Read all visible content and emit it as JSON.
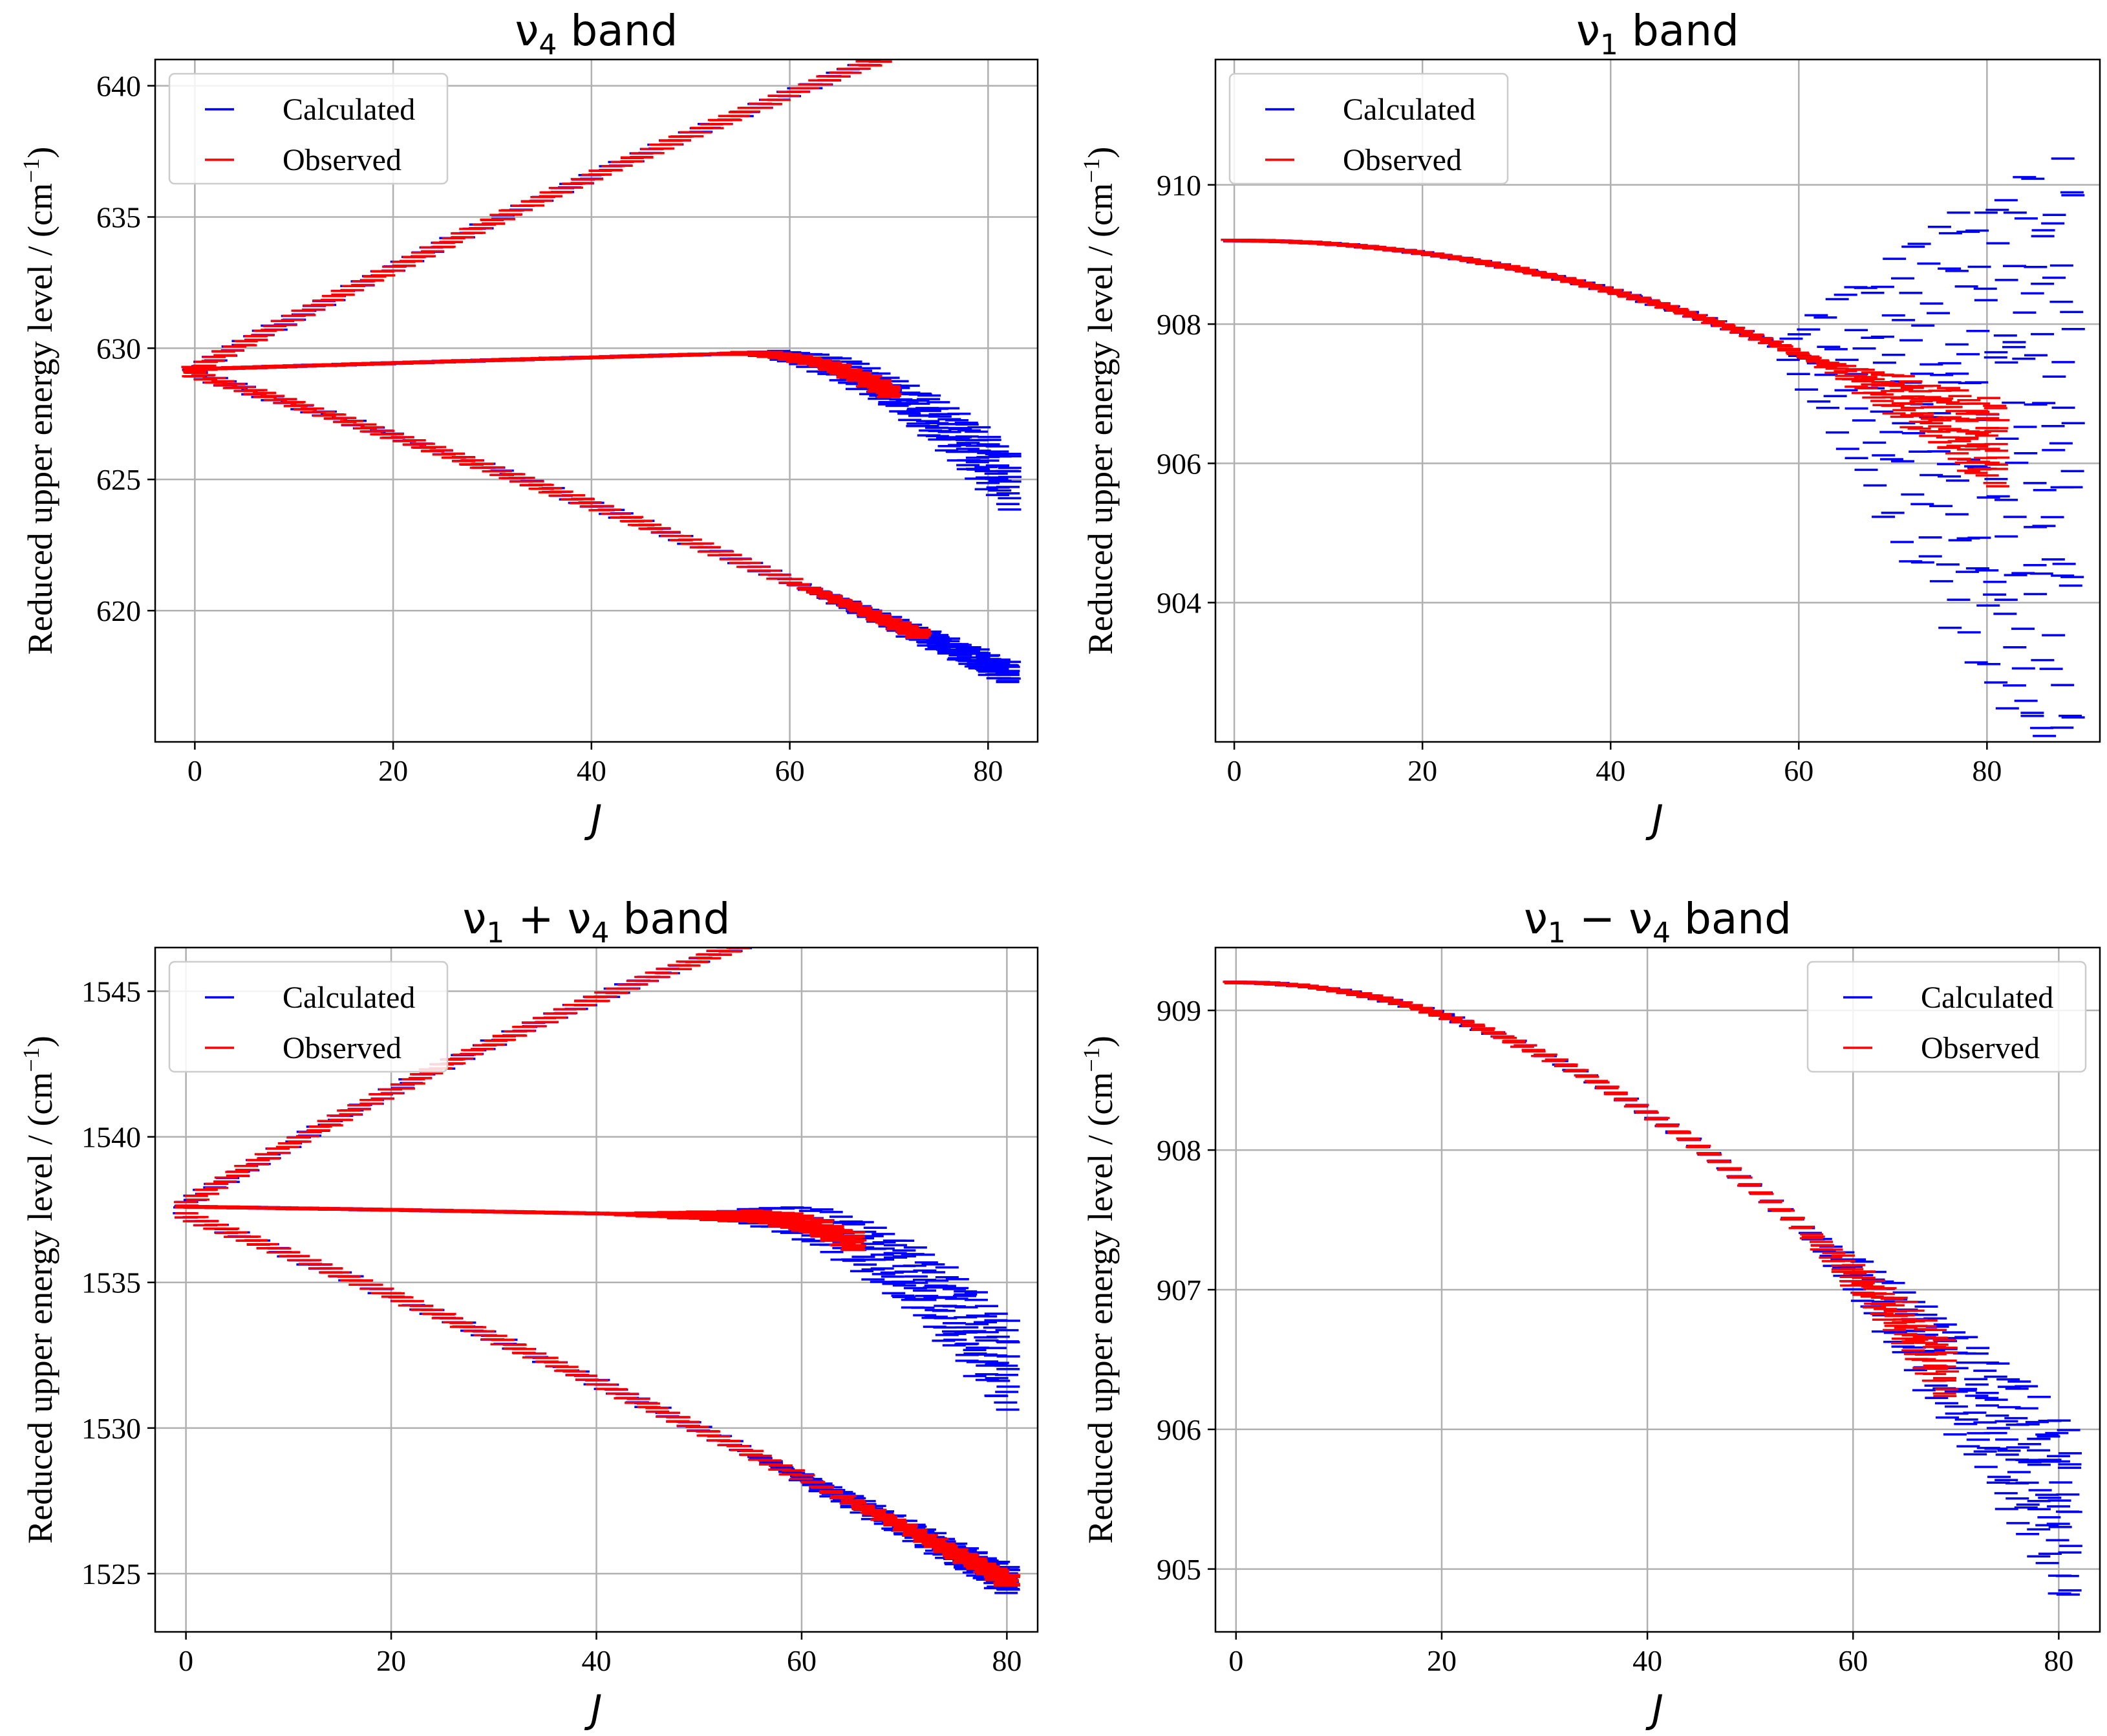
{
  "chart_data": [
    {
      "type": "scatter",
      "title": "ν",
      "title_sub": "4",
      "title_rest": " band",
      "xlabel": "J",
      "ylabel": "Reduced upper energy level / (cm",
      "ylabel_sup": "−1",
      "ylabel_end": ")",
      "xlim": [
        -4,
        85
      ],
      "ylim": [
        615,
        641
      ],
      "xticks": [
        0,
        20,
        40,
        60,
        80
      ],
      "yticks": [
        620,
        625,
        630,
        635,
        640
      ],
      "legend": [
        "Calculated",
        "Observed"
      ],
      "legend_position": "upper-left",
      "series": [
        {
          "name": "Calculated upper branch",
          "color": "#0000ff",
          "j_max": 82,
          "y0": 629.2,
          "slope": 0.2,
          "curv": -0.00042,
          "spread_start": 72,
          "spread": 0.6
        },
        {
          "name": "Calculated middle branch",
          "color": "#0000ff",
          "j_max": 82,
          "y0": 629.2,
          "slope": 0.012,
          "curv": -2e-05,
          "drop_start": 55,
          "drop": -0.014,
          "spread_start": 55,
          "spread": 2.0
        },
        {
          "name": "Calculated lower branch",
          "color": "#0000ff",
          "j_max": 82,
          "y0": 629.0,
          "slope": -0.11,
          "curv": -0.00035,
          "spread_start": 60,
          "spread": 0.8
        },
        {
          "name": "Observed upper branch",
          "color": "#ff0000",
          "j_max": 79,
          "y0": 629.2,
          "slope": 0.2,
          "curv": -0.00042,
          "spread_start": 70,
          "spread": 0.3
        },
        {
          "name": "Observed middle branch",
          "color": "#ff0000",
          "j_max": 70,
          "y0": 629.2,
          "slope": 0.012,
          "curv": -2e-05,
          "drop_start": 55,
          "drop": -0.014,
          "spread_start": 50,
          "spread": 0.4
        },
        {
          "name": "Observed lower branch",
          "color": "#ff0000",
          "j_max": 73,
          "y0": 629.0,
          "slope": -0.11,
          "curv": -0.00035,
          "spread_start": 60,
          "spread": 0.3
        }
      ]
    },
    {
      "type": "scatter",
      "title": "ν",
      "title_sub": "1",
      "title_rest": " band",
      "xlabel": "J",
      "ylabel": "Reduced upper energy level / (cm",
      "ylabel_sup": "−1",
      "ylabel_end": ")",
      "xlim": [
        -2,
        92
      ],
      "ylim": [
        902,
        911.8
      ],
      "xticks": [
        0,
        20,
        40,
        60,
        80
      ],
      "yticks": [
        904,
        906,
        908,
        910
      ],
      "legend": [
        "Calculated",
        "Observed"
      ],
      "legend_position": "upper-left",
      "series": [
        {
          "name": "Calculated",
          "color": "#0000ff",
          "j_max": 89,
          "y0": 909.2,
          "slope": 0,
          "curv": -0.00045,
          "spread_start": 58,
          "spread": 9.0
        },
        {
          "name": "Observed",
          "color": "#ff0000",
          "j_max": 81,
          "y0": 909.2,
          "slope": 0,
          "curv": -0.00045,
          "spread_start": 62,
          "spread": 1.2
        }
      ]
    },
    {
      "type": "scatter",
      "title": "ν",
      "title_sub": "1",
      "title_rest": " + ν",
      "title_sub2": "4",
      "title_end": " band",
      "xlabel": "J",
      "ylabel": "Reduced upper energy level / (cm",
      "ylabel_sup": "−1",
      "ylabel_end": ")",
      "xlim": [
        -3,
        83
      ],
      "ylim": [
        1523,
        1546.5
      ],
      "xticks": [
        0,
        20,
        40,
        60,
        80
      ],
      "yticks": [
        1525,
        1530,
        1535,
        1540,
        1545
      ],
      "legend": [
        "Calculated",
        "Observed"
      ],
      "legend_position": "upper-left",
      "series": [
        {
          "name": "Calculated upper branch",
          "color": "#0000ff",
          "j_max": 80,
          "y0": 1537.7,
          "slope": 0.21,
          "curv": -0.00085,
          "spread_start": 70,
          "spread": 0.7
        },
        {
          "name": "Calculated middle branch",
          "color": "#0000ff",
          "j_max": 80,
          "y0": 1537.6,
          "slope": -0.005,
          "curv": -2e-05,
          "drop_start": 55,
          "drop": -0.016,
          "spread_start": 50,
          "spread": 3.0
        },
        {
          "name": "Calculated lower branch",
          "color": "#0000ff",
          "j_max": 80,
          "y0": 1537.3,
          "slope": -0.13,
          "curv": -0.00033,
          "spread_start": 55,
          "spread": 0.9
        },
        {
          "name": "Observed upper branch",
          "color": "#ff0000",
          "j_max": 80,
          "y0": 1537.7,
          "slope": 0.21,
          "curv": -0.00085,
          "spread_start": 68,
          "spread": 0.4
        },
        {
          "name": "Observed middle branch",
          "color": "#ff0000",
          "j_max": 65,
          "y0": 1537.6,
          "slope": -0.005,
          "curv": -2e-05,
          "drop_start": 55,
          "drop": -0.016,
          "spread_start": 40,
          "spread": 0.6
        },
        {
          "name": "Observed lower branch",
          "color": "#ff0000",
          "j_max": 80,
          "y0": 1537.3,
          "slope": -0.13,
          "curv": -0.00033,
          "spread_start": 60,
          "spread": 0.4
        }
      ]
    },
    {
      "type": "scatter",
      "title": "ν",
      "title_sub": "1",
      "title_rest": " − ν",
      "title_sub2": "4",
      "title_end": " band",
      "xlabel": "J",
      "ylabel": "Reduced upper energy level / (cm",
      "ylabel_sup": "−1",
      "ylabel_end": ")",
      "xlim": [
        -2,
        84
      ],
      "ylim": [
        904.55,
        909.45
      ],
      "xticks": [
        0,
        20,
        40,
        60,
        80
      ],
      "yticks": [
        905,
        906,
        907,
        908,
        909
      ],
      "legend": [
        "Calculated",
        "Observed"
      ],
      "legend_position": "upper-right",
      "series": [
        {
          "name": "Calculated",
          "color": "#0000ff",
          "j_max": 81,
          "y0": 909.2,
          "slope": 0,
          "curv": -0.00058,
          "spread_start": 55,
          "spread": 1.2
        },
        {
          "name": "Observed",
          "color": "#ff0000",
          "j_max": 69,
          "y0": 909.2,
          "slope": 0,
          "curv": -0.00058,
          "spread_start": 55,
          "spread": 0.4
        }
      ]
    }
  ]
}
